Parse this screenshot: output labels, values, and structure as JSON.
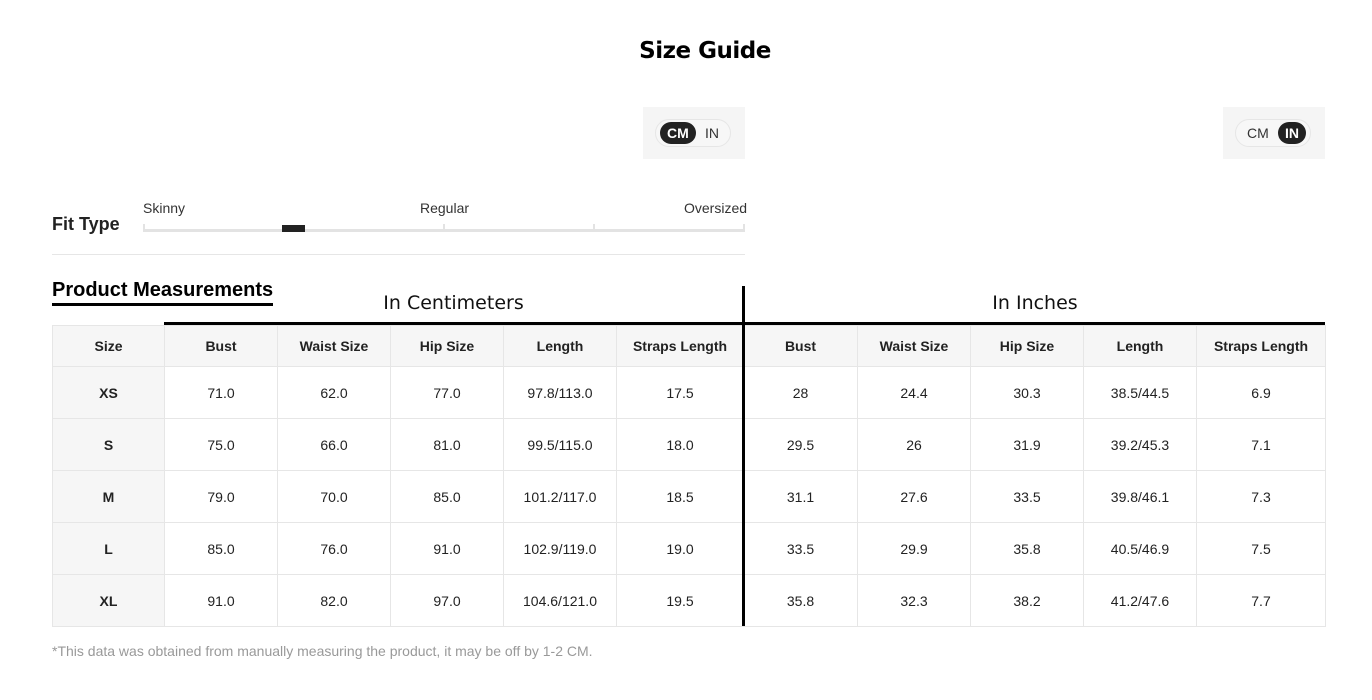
{
  "title": "Size Guide",
  "unit_toggles": [
    {
      "options": [
        "CM",
        "IN"
      ],
      "selected": "CM"
    },
    {
      "options": [
        "CM",
        "IN"
      ],
      "selected": "IN"
    }
  ],
  "fit": {
    "label": "Fit Type",
    "options": [
      "Skinny",
      "Regular",
      "Oversized"
    ],
    "level": 0.25
  },
  "section_title": "Product Measurements",
  "groups": {
    "cm": "In Centimeters",
    "in": "In Inches"
  },
  "headers": [
    "Size",
    "Bust",
    "Waist Size",
    "Hip Size",
    "Length",
    "Straps Length",
    "Bust",
    "Waist Size",
    "Hip Size",
    "Length",
    "Straps Length"
  ],
  "rows": [
    [
      "XS",
      "71.0",
      "62.0",
      "77.0",
      "97.8/113.0",
      "17.5",
      "28",
      "24.4",
      "30.3",
      "38.5/44.5",
      "6.9"
    ],
    [
      "S",
      "75.0",
      "66.0",
      "81.0",
      "99.5/115.0",
      "18.0",
      "29.5",
      "26",
      "31.9",
      "39.2/45.3",
      "7.1"
    ],
    [
      "M",
      "79.0",
      "70.0",
      "85.0",
      "101.2/117.0",
      "18.5",
      "31.1",
      "27.6",
      "33.5",
      "39.8/46.1",
      "7.3"
    ],
    [
      "L",
      "85.0",
      "76.0",
      "91.0",
      "102.9/119.0",
      "19.0",
      "33.5",
      "29.9",
      "35.8",
      "40.5/46.9",
      "7.5"
    ],
    [
      "XL",
      "91.0",
      "82.0",
      "97.0",
      "104.6/121.0",
      "19.5",
      "35.8",
      "32.3",
      "38.2",
      "41.2/47.6",
      "7.7"
    ]
  ],
  "note": "*This data was obtained from manually measuring the product, it may be off by 1-2 CM."
}
